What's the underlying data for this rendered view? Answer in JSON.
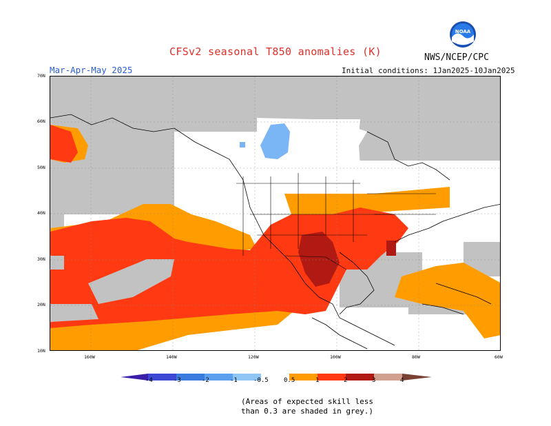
{
  "title": "CFSv2 seasonal T850 anomalies (K)",
  "agency": "NWS/NCEP/CPC",
  "logo_text": "NOAA",
  "period": "Mar-Apr-May 2025",
  "initial_conditions": "Initial conditions: 1Jan2025-10Jan2025",
  "lat_labels": [
    "70N",
    "60N",
    "50N",
    "40N",
    "30N",
    "20N",
    "10N"
  ],
  "lon_labels": [
    "160W",
    "140W",
    "120W",
    "100W",
    "80W",
    "60W"
  ],
  "colorbar": {
    "ticks": [
      "-4",
      "-3",
      "-2",
      "-1",
      "-0.5",
      "0.5",
      "1",
      "2",
      "3",
      "4"
    ],
    "colors": [
      "#3b1fa8",
      "#3c47d4",
      "#3a7be0",
      "#5aa0ee",
      "#8ec6f5",
      "#ffffff",
      "#ff9d00",
      "#ff3a12",
      "#b01a12",
      "#d2a08e",
      "#7a4232"
    ]
  },
  "skill_note": [
    "(Areas of expected skill less",
    "than 0.3 are shaded in grey.)"
  ],
  "map_colors": {
    "grey": "#c2c2c2",
    "orange": "#ff9d00",
    "red": "#ff3a12",
    "darkred": "#b01a12",
    "lightblue": "#7ab5f5",
    "white": "#ffffff"
  }
}
